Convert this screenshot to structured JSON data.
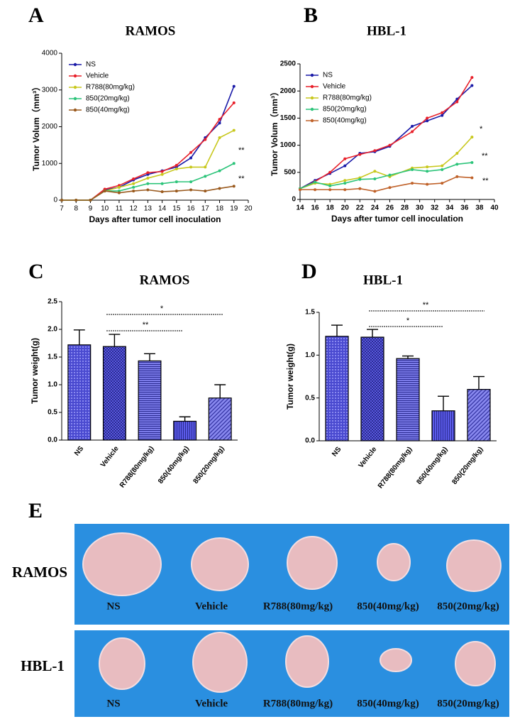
{
  "chart_data": [
    {
      "type": "line",
      "label": "A",
      "title": "RAMOS",
      "x_label": "Days after tumor cell inoculation",
      "y_label": "Tumor Volum（mm³）",
      "x": [
        7,
        8,
        9,
        10,
        11,
        12,
        13,
        14,
        15,
        16,
        17,
        18,
        19
      ],
      "xlim": [
        7,
        20
      ],
      "xticks": [
        7,
        8,
        9,
        10,
        11,
        12,
        13,
        14,
        15,
        16,
        17,
        18,
        19,
        20
      ],
      "ylim": [
        0,
        4000
      ],
      "yticks": [
        0,
        1000,
        2000,
        3000,
        4000
      ],
      "legend": "upper left",
      "series": [
        {
          "name": "NS",
          "color": "#1a1aa8",
          "values": [
            0,
            0,
            0,
            280,
            350,
            550,
            700,
            800,
            900,
            1150,
            1700,
            2100,
            3100
          ]
        },
        {
          "name": "Vehicle",
          "color": "#e8202a",
          "values": [
            0,
            0,
            0,
            300,
            400,
            580,
            750,
            780,
            950,
            1300,
            1650,
            2200,
            2650
          ]
        },
        {
          "name": "R788(80mg/kg)",
          "color": "#c8c81e",
          "values": [
            0,
            0,
            0,
            250,
            350,
            450,
            600,
            700,
            850,
            900,
            900,
            1700,
            1900
          ]
        },
        {
          "name": "850(20mg/kg)",
          "color": "#2cc47a",
          "values": [
            0,
            0,
            0,
            250,
            250,
            350,
            450,
            450,
            500,
            500,
            650,
            800,
            1000
          ]
        },
        {
          "name": "850(40mg/kg)",
          "color": "#9a5a1e",
          "values": [
            0,
            0,
            0,
            250,
            200,
            250,
            280,
            230,
            250,
            280,
            250,
            320,
            380
          ]
        }
      ],
      "annotations": [
        "**",
        "**"
      ]
    },
    {
      "type": "line",
      "label": "B",
      "title": "HBL-1",
      "x_label": "Days after tumor cell inoculation",
      "y_label": "Tumor Volum（mm³）",
      "x": [
        14,
        16,
        18,
        20,
        22,
        24,
        26,
        29,
        31,
        33,
        35,
        37
      ],
      "xlim": [
        14,
        40
      ],
      "xticks": [
        14,
        16,
        18,
        20,
        22,
        24,
        26,
        28,
        30,
        32,
        34,
        36,
        38,
        40
      ],
      "ylim": [
        0,
        2500
      ],
      "yticks": [
        0,
        500,
        1000,
        1500,
        2000,
        2500
      ],
      "legend": "upper left",
      "series": [
        {
          "name": "NS",
          "color": "#1a1aa8",
          "values": [
            200,
            350,
            480,
            620,
            850,
            880,
            980,
            1350,
            1450,
            1550,
            1850,
            2100
          ]
        },
        {
          "name": "Vehicle",
          "color": "#e8202a",
          "values": [
            200,
            330,
            500,
            750,
            830,
            900,
            1000,
            1250,
            1500,
            1600,
            1800,
            2250
          ]
        },
        {
          "name": "R788(80mg/kg)",
          "color": "#c8c81e",
          "values": [
            200,
            300,
            280,
            350,
            400,
            520,
            420,
            580,
            600,
            620,
            850,
            1150
          ]
        },
        {
          "name": "850(20mg/kg)",
          "color": "#2cc47a",
          "values": [
            200,
            320,
            250,
            300,
            370,
            380,
            450,
            550,
            520,
            550,
            650,
            680
          ]
        },
        {
          "name": "850(40mg/kg)",
          "color": "#c0622a",
          "values": [
            180,
            180,
            180,
            180,
            200,
            150,
            220,
            300,
            280,
            300,
            420,
            400
          ]
        }
      ],
      "annotations": [
        "*",
        "**",
        "**"
      ]
    },
    {
      "type": "bar",
      "label": "C",
      "title": "RAMOS",
      "y_label": "Tumor weight(g)",
      "categories": [
        "NS",
        "Vehicle",
        "R788(80mg/kg)",
        "850(40mg/kg)",
        "850(20mg/kg)"
      ],
      "values": [
        1.72,
        1.69,
        1.43,
        0.34,
        0.76
      ],
      "errors": [
        0.27,
        0.22,
        0.13,
        0.08,
        0.24
      ],
      "color": "#5a5ae0",
      "ylim": [
        0,
        2.5
      ],
      "yticks": [
        {
          "value": 0,
          "label": "0.0"
        },
        0.5,
        {
          "value": 1,
          "label": "1.0"
        },
        1.5,
        {
          "value": 2,
          "label": "2.0"
        },
        2.5
      ],
      "annotations": [
        "*",
        "**"
      ]
    },
    {
      "type": "bar",
      "label": "D",
      "title": "HBL-1",
      "y_label": "Tumor weight(g)",
      "categories": [
        "NS",
        "Vehicle",
        "R788(80mg/kg)",
        "850(40mg/kg)",
        "850(20mg/kg)"
      ],
      "values": [
        1.22,
        1.21,
        0.96,
        0.35,
        0.6
      ],
      "errors": [
        0.13,
        0.09,
        0.03,
        0.17,
        0.15
      ],
      "color": "#5a5ae0",
      "ylim": [
        0,
        1.5
      ],
      "yticks": [
        {
          "value": 0,
          "label": "0.0"
        },
        0.5,
        {
          "value": 1,
          "label": "1.0"
        },
        1.5
      ],
      "annotations": [
        "**",
        "*"
      ]
    }
  ],
  "photo_panel": {
    "label": "E",
    "rows": [
      {
        "name": "RAMOS",
        "labels": [
          "NS",
          "Vehicle",
          "R788(80mg/kg)",
          "850(40mg/kg)",
          "850(20mg/kg)"
        ]
      },
      {
        "name": "HBL-1",
        "labels": [
          "NS",
          "Vehicle",
          "R788(80mg/kg)",
          "850(40mg/kg)",
          "850(20mg/kg)"
        ]
      }
    ]
  }
}
